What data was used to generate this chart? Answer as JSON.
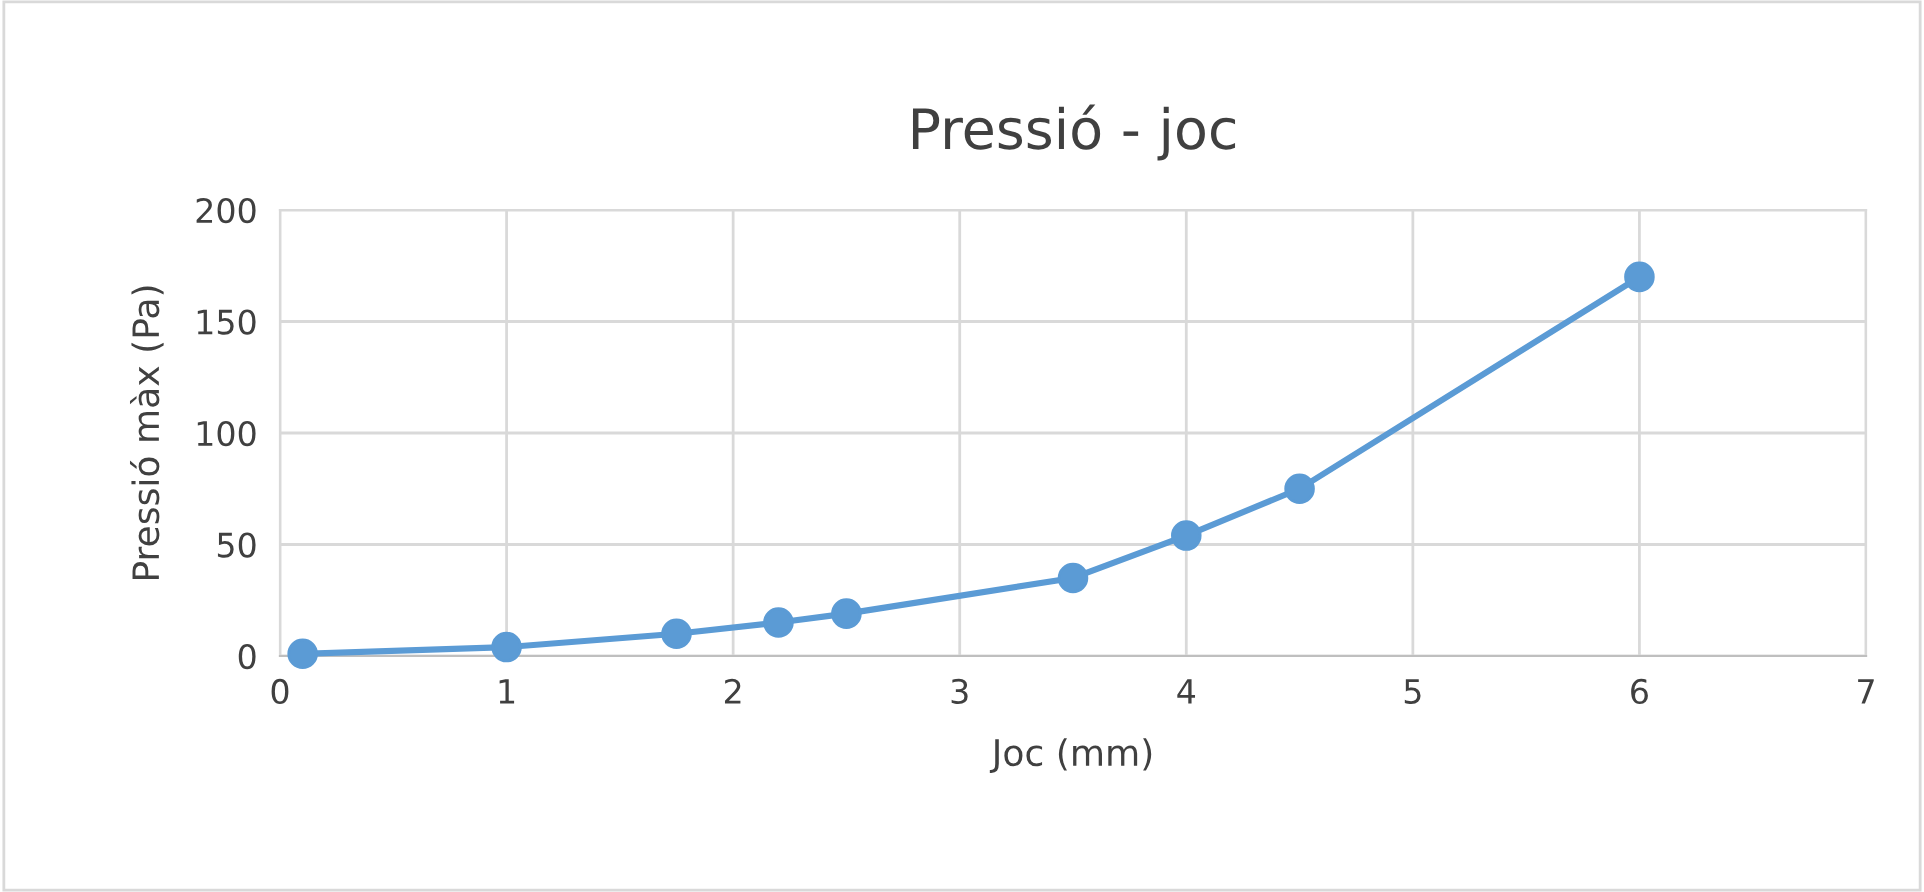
{
  "chart_data": {
    "type": "line",
    "title": "Pressió - joc",
    "xlabel": "Joc (mm)",
    "ylabel": "Pressió màx (Pa)",
    "x": [
      0.1,
      1,
      1.75,
      2.2,
      2.5,
      3.5,
      4,
      4.5,
      6
    ],
    "series": [
      {
        "color": "#5b9bd5",
        "values": [
          1,
          4,
          10,
          15,
          19,
          35,
          54,
          75,
          170
        ]
      }
    ],
    "xlim": [
      0,
      7
    ],
    "xticks": [
      0,
      1,
      2,
      3,
      4,
      5,
      6,
      7
    ],
    "ylim": [
      0,
      200
    ],
    "yticks": [
      0,
      50,
      100,
      150,
      200
    ],
    "grid": true,
    "marker": "circle",
    "line_style": "solid"
  }
}
